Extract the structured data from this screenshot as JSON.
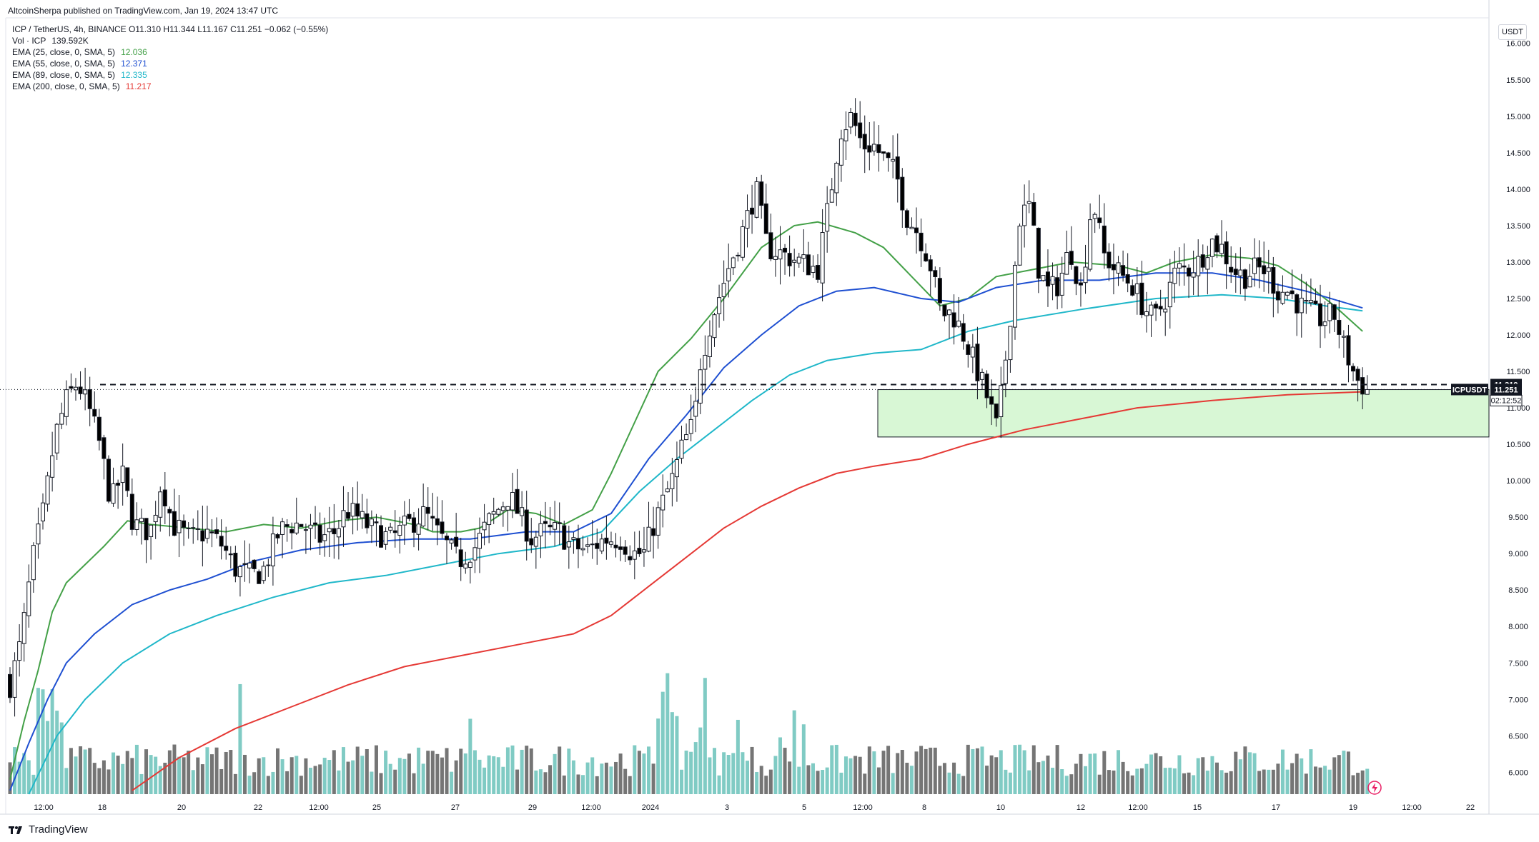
{
  "header": {
    "published": "AltcoinSherpa published on TradingView.com, Jan 19, 2024 13:47 UTC",
    "symbol_line": "ICP / TetherUS, 4h, BINANCE  O11.310  H11.344  L11.167  C11.251  −0.062 (−0.55%)",
    "volume_label": "Vol · ICP",
    "volume_value": "139.592K",
    "emas": [
      {
        "label": "EMA (25, close, 0, SMA, 5)",
        "value": "12.036",
        "color": "#43a047"
      },
      {
        "label": "EMA (55, close, 0, SMA, 5)",
        "value": "12.371",
        "color": "#1e4fd1"
      },
      {
        "label": "EMA (89, close, 0, SMA, 5)",
        "value": "12.335",
        "color": "#1fb7c9"
      },
      {
        "label": "EMA (200, close, 0, SMA, 5)",
        "value": "11.217",
        "color": "#e53935"
      }
    ]
  },
  "price_axis": {
    "currency": "USDT",
    "ticks": [
      "16.000",
      "15.500",
      "15.000",
      "14.500",
      "14.000",
      "13.500",
      "13.000",
      "12.500",
      "12.000",
      "11.500",
      "11.000",
      "10.500",
      "10.000",
      "9.500",
      "9.000",
      "8.500",
      "8.000",
      "7.500",
      "7.000",
      "6.500",
      "6.000"
    ],
    "last_price_flag": "11.319",
    "symbol_flag": "ICPUSDT",
    "close_flag": "11.251",
    "countdown": "02:12:52"
  },
  "time_axis": {
    "ticks": [
      "12:00",
      "18",
      "20",
      "22",
      "12:00",
      "25",
      "27",
      "29",
      "12:00",
      "2024",
      "3",
      "5",
      "12:00",
      "8",
      "10",
      "12",
      "12:00",
      "15",
      "17",
      "19",
      "12:00",
      "22"
    ]
  },
  "footer": {
    "brand": "TradingView"
  },
  "colors": {
    "up": "#ffffff",
    "down": "#000000",
    "vol_up": "#80cbc4",
    "vol_down": "#757575",
    "zone_fill": "#d8f7d5",
    "ema25": "#43a047",
    "ema55": "#1e4fd1",
    "ema89": "#1fb7c9",
    "ema200": "#e53935"
  },
  "chart_data": {
    "type": "candlestick",
    "timeframe": "4h",
    "ylim": [
      5.7,
      16.35
    ],
    "support_zone": [
      10.6,
      11.25
    ],
    "dashed_level": 11.319,
    "close_price": 11.251,
    "ema_lines": {
      "ema25": [
        [
          0,
          5.9
        ],
        [
          3,
          6.7
        ],
        [
          6,
          7.4
        ],
        [
          9,
          8.2
        ],
        [
          12,
          8.6
        ],
        [
          16,
          8.85
        ],
        [
          20,
          9.1
        ],
        [
          25,
          9.45
        ],
        [
          30,
          9.4
        ],
        [
          38,
          9.35
        ],
        [
          46,
          9.3
        ],
        [
          54,
          9.4
        ],
        [
          62,
          9.35
        ],
        [
          70,
          9.45
        ],
        [
          78,
          9.5
        ],
        [
          86,
          9.4
        ],
        [
          90,
          9.3
        ],
        [
          96,
          9.3
        ],
        [
          100,
          9.35
        ],
        [
          106,
          9.6
        ],
        [
          112,
          9.55
        ],
        [
          118,
          9.4
        ],
        [
          124,
          9.6
        ],
        [
          128,
          10.1
        ],
        [
          133,
          10.8
        ],
        [
          138,
          11.5
        ],
        [
          145,
          11.95
        ],
        [
          152,
          12.5
        ],
        [
          160,
          13.2
        ],
        [
          167,
          13.5
        ],
        [
          172,
          13.55
        ],
        [
          180,
          13.4
        ],
        [
          186,
          13.2
        ],
        [
          192,
          12.8
        ],
        [
          198,
          12.4
        ],
        [
          204,
          12.5
        ],
        [
          210,
          12.8
        ],
        [
          218,
          12.9
        ],
        [
          226,
          13.0
        ],
        [
          236,
          12.95
        ],
        [
          242,
          12.85
        ],
        [
          248,
          13.0
        ],
        [
          256,
          13.1
        ],
        [
          264,
          13.05
        ],
        [
          270,
          12.95
        ],
        [
          276,
          12.7
        ],
        [
          282,
          12.4
        ],
        [
          288,
          12.05
        ]
      ],
      "ema55": [
        [
          0,
          5.75
        ],
        [
          4,
          6.4
        ],
        [
          8,
          7.0
        ],
        [
          12,
          7.5
        ],
        [
          18,
          7.9
        ],
        [
          26,
          8.3
        ],
        [
          34,
          8.5
        ],
        [
          42,
          8.65
        ],
        [
          52,
          8.9
        ],
        [
          62,
          9.05
        ],
        [
          74,
          9.15
        ],
        [
          86,
          9.2
        ],
        [
          98,
          9.2
        ],
        [
          110,
          9.3
        ],
        [
          120,
          9.3
        ],
        [
          128,
          9.55
        ],
        [
          136,
          10.3
        ],
        [
          144,
          10.9
        ],
        [
          152,
          11.55
        ],
        [
          160,
          12.0
        ],
        [
          168,
          12.4
        ],
        [
          176,
          12.6
        ],
        [
          184,
          12.65
        ],
        [
          194,
          12.5
        ],
        [
          202,
          12.45
        ],
        [
          210,
          12.65
        ],
        [
          220,
          12.75
        ],
        [
          232,
          12.75
        ],
        [
          244,
          12.85
        ],
        [
          256,
          12.85
        ],
        [
          266,
          12.75
        ],
        [
          276,
          12.6
        ],
        [
          288,
          12.37
        ]
      ],
      "ema89": [
        [
          4,
          5.7
        ],
        [
          10,
          6.5
        ],
        [
          16,
          7.0
        ],
        [
          24,
          7.5
        ],
        [
          34,
          7.9
        ],
        [
          44,
          8.15
        ],
        [
          56,
          8.4
        ],
        [
          68,
          8.6
        ],
        [
          80,
          8.7
        ],
        [
          92,
          8.85
        ],
        [
          104,
          9.0
        ],
        [
          116,
          9.1
        ],
        [
          126,
          9.3
        ],
        [
          134,
          9.85
        ],
        [
          142,
          10.3
        ],
        [
          150,
          10.7
        ],
        [
          158,
          11.1
        ],
        [
          166,
          11.45
        ],
        [
          174,
          11.65
        ],
        [
          184,
          11.75
        ],
        [
          194,
          11.8
        ],
        [
          204,
          12.05
        ],
        [
          214,
          12.2
        ],
        [
          228,
          12.35
        ],
        [
          244,
          12.5
        ],
        [
          258,
          12.55
        ],
        [
          270,
          12.5
        ],
        [
          280,
          12.4
        ],
        [
          288,
          12.33
        ]
      ],
      "ema200": [
        [
          26,
          5.75
        ],
        [
          36,
          6.2
        ],
        [
          48,
          6.6
        ],
        [
          60,
          6.9
        ],
        [
          72,
          7.2
        ],
        [
          84,
          7.45
        ],
        [
          96,
          7.6
        ],
        [
          108,
          7.75
        ],
        [
          120,
          7.9
        ],
        [
          128,
          8.15
        ],
        [
          136,
          8.55
        ],
        [
          144,
          8.95
        ],
        [
          152,
          9.35
        ],
        [
          160,
          9.65
        ],
        [
          168,
          9.9
        ],
        [
          176,
          10.1
        ],
        [
          184,
          10.2
        ],
        [
          194,
          10.3
        ],
        [
          204,
          10.5
        ],
        [
          216,
          10.7
        ],
        [
          228,
          10.85
        ],
        [
          240,
          11.0
        ],
        [
          256,
          11.1
        ],
        [
          272,
          11.18
        ],
        [
          288,
          11.22
        ]
      ]
    }
  }
}
